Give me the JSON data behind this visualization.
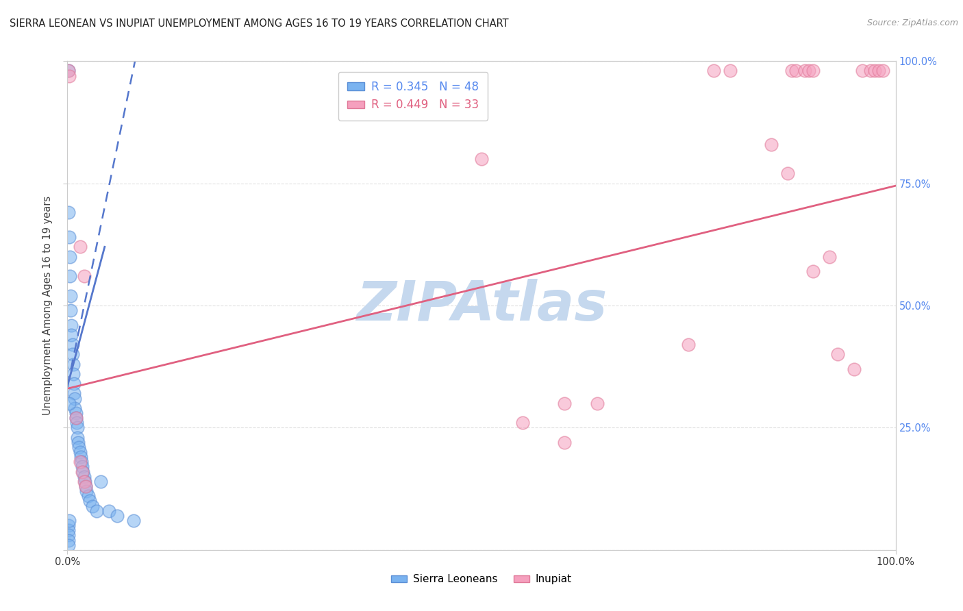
{
  "title": "SIERRA LEONEAN VS INUPIAT UNEMPLOYMENT AMONG AGES 16 TO 19 YEARS CORRELATION CHART",
  "source": "Source: ZipAtlas.com",
  "ylabel": "Unemployment Among Ages 16 to 19 years",
  "xlim": [
    0,
    1
  ],
  "ylim": [
    0,
    1
  ],
  "xtick_positions": [
    0,
    1.0
  ],
  "xtick_labels": [
    "0.0%",
    "100.0%"
  ],
  "ytick_positions": [
    0,
    0.25,
    0.5,
    0.75,
    1.0
  ],
  "ytick_labels_right": [
    "",
    "25.0%",
    "50.0%",
    "75.0%",
    "100.0%"
  ],
  "grid_yticks": [
    0.25,
    0.5,
    0.75,
    1.0
  ],
  "watermark": "ZIPAtlas",
  "watermark_color": "#c5d8ee",
  "blue_color": "#7ab3f0",
  "blue_edge": "#5b8fd6",
  "pink_color": "#f5a0be",
  "pink_edge": "#e07898",
  "blue_line_color": "#5577cc",
  "pink_line_color": "#e06080",
  "legend_blue_label": "R = 0.345   N = 48",
  "legend_pink_label": "R = 0.449   N = 33",
  "bottom_legend_blue": "Sierra Leoneans",
  "bottom_legend_pink": "Inupiat",
  "title_fontsize": 10.5,
  "bg_color": "#ffffff",
  "blue_scatter_x": [
    0.001,
    0.001,
    0.002,
    0.003,
    0.003,
    0.004,
    0.004,
    0.005,
    0.005,
    0.006,
    0.006,
    0.007,
    0.007,
    0.008,
    0.008,
    0.009,
    0.009,
    0.01,
    0.01,
    0.011,
    0.012,
    0.012,
    0.013,
    0.014,
    0.015,
    0.016,
    0.017,
    0.018,
    0.019,
    0.02,
    0.021,
    0.022,
    0.023,
    0.025,
    0.027,
    0.03,
    0.035,
    0.04,
    0.05,
    0.06,
    0.001,
    0.001,
    0.001,
    0.001,
    0.001,
    0.002,
    0.002,
    0.08
  ],
  "blue_scatter_y": [
    0.98,
    0.69,
    0.64,
    0.6,
    0.56,
    0.52,
    0.49,
    0.46,
    0.44,
    0.42,
    0.4,
    0.38,
    0.36,
    0.34,
    0.32,
    0.31,
    0.29,
    0.28,
    0.27,
    0.26,
    0.25,
    0.23,
    0.22,
    0.21,
    0.2,
    0.19,
    0.18,
    0.17,
    0.16,
    0.15,
    0.14,
    0.13,
    0.12,
    0.11,
    0.1,
    0.09,
    0.08,
    0.14,
    0.08,
    0.07,
    0.05,
    0.04,
    0.03,
    0.02,
    0.01,
    0.3,
    0.06,
    0.06
  ],
  "pink_scatter_x": [
    0.001,
    0.002,
    0.015,
    0.02,
    0.01,
    0.015,
    0.018,
    0.02,
    0.022,
    0.5,
    0.6,
    0.64,
    0.55,
    0.6,
    0.75,
    0.85,
    0.87,
    0.9,
    0.92,
    0.93,
    0.95,
    0.96,
    0.97,
    0.975,
    0.98,
    0.985,
    0.875,
    0.88,
    0.89,
    0.895,
    0.9,
    0.8,
    0.78
  ],
  "pink_scatter_y": [
    0.98,
    0.97,
    0.62,
    0.56,
    0.27,
    0.18,
    0.16,
    0.14,
    0.13,
    0.8,
    0.3,
    0.3,
    0.26,
    0.22,
    0.42,
    0.83,
    0.77,
    0.57,
    0.6,
    0.4,
    0.37,
    0.98,
    0.98,
    0.98,
    0.98,
    0.98,
    0.98,
    0.98,
    0.98,
    0.98,
    0.98,
    0.98,
    0.98
  ],
  "blue_line_x": [
    0.0,
    0.1
  ],
  "blue_line_y": [
    0.335,
    1.15
  ],
  "pink_line_x": [
    0.0,
    1.0
  ],
  "pink_line_y": [
    0.33,
    0.745
  ]
}
